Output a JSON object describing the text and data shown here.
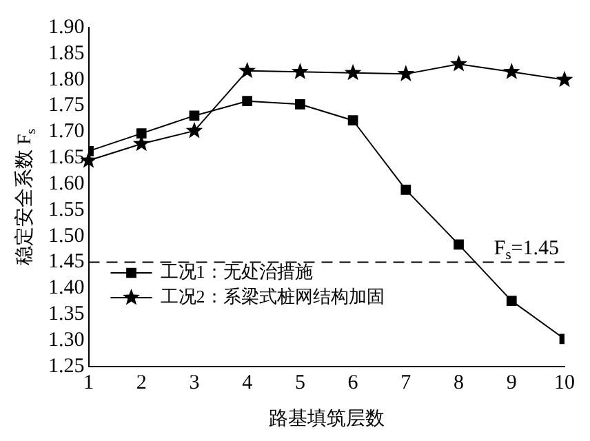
{
  "chart_data": {
    "type": "line",
    "xlabel": "路基填筑层数",
    "ylabel": "稳定安全系数 F$_{s}$",
    "x": [
      1,
      2,
      3,
      4,
      5,
      6,
      7,
      8,
      9,
      10
    ],
    "series": [
      {
        "name": "工况1：无处治措施",
        "color": "#000000",
        "marker": "square",
        "values": [
          1.663,
          1.697,
          1.731,
          1.759,
          1.753,
          1.722,
          1.589,
          1.484,
          1.376,
          1.303
        ]
      },
      {
        "name": "工况2：系梁式桩网结构加固",
        "color": "#000000",
        "marker": "star",
        "values": [
          1.645,
          1.677,
          1.702,
          1.817,
          1.815,
          1.813,
          1.811,
          1.83,
          1.815,
          1.8
        ]
      }
    ],
    "xlim": [
      1,
      10
    ],
    "xticks": [
      1,
      2,
      3,
      4,
      5,
      6,
      7,
      8,
      9,
      10
    ],
    "ylim": [
      1.25,
      1.9
    ],
    "yticks": [
      {
        "value": 1.25,
        "label": "1.25"
      },
      {
        "value": 1.3,
        "label": "1.30"
      },
      {
        "value": 1.35,
        "label": "1.35"
      },
      {
        "value": 1.4,
        "label": "1.40"
      },
      {
        "value": 1.45,
        "label": "1.45"
      },
      {
        "value": 1.5,
        "label": "1.50"
      },
      {
        "value": 1.55,
        "label": "1.55"
      },
      {
        "value": 1.6,
        "label": "1.60"
      },
      {
        "value": 1.65,
        "label": "1.65"
      },
      {
        "value": 1.7,
        "label": "1.70"
      },
      {
        "value": 1.75,
        "label": "1.75"
      },
      {
        "value": 1.8,
        "label": "1.80"
      },
      {
        "value": 1.85,
        "label": "1.85"
      },
      {
        "value": 1.9,
        "label": "1.90"
      }
    ],
    "ref_lines": [
      {
        "axis": "y",
        "value": 1.45,
        "label": "F$_{s}$=1.45",
        "line_style": "dashed",
        "color": "#000000"
      }
    ],
    "grid": false,
    "legend": "bottom left",
    "line_style": "solid"
  }
}
